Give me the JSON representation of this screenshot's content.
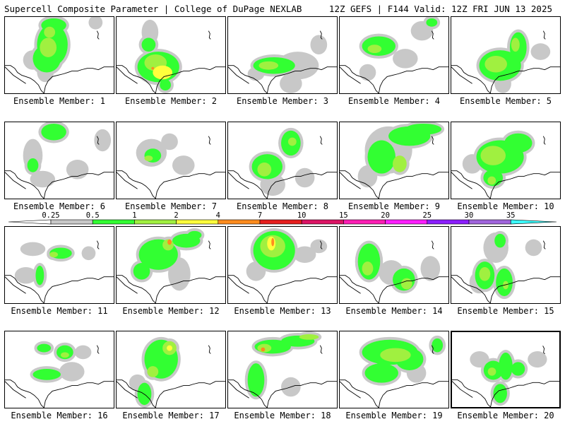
{
  "header": {
    "title": "Supercell Composite Parameter | College of DuPage NEXLAB",
    "model_info": "12Z GEFS | F144 Valid: 12Z FRI JUN 13 2025"
  },
  "panel_label_prefix": "Ensemble Member:",
  "members": [
    "1",
    "2",
    "3",
    "4",
    "5",
    "6",
    "7",
    "8",
    "9",
    "10",
    "11",
    "12",
    "13",
    "14",
    "15",
    "16",
    "17",
    "18",
    "19",
    "20"
  ],
  "colorbar": {
    "ticks": [
      "0.25",
      "0.5",
      "1",
      "2",
      "4",
      "7",
      "10",
      "15",
      "20",
      "25",
      "30",
      "35"
    ],
    "colors": [
      "#c8c8c8",
      "#32ff32",
      "#a0f040",
      "#ffff3c",
      "#ff8c1e",
      "#e61e1e",
      "#dc1464",
      "#ff1eb4",
      "#ff1eff",
      "#8c1eff",
      "#a064dc",
      "#3cffff"
    ]
  },
  "selected_member": "20"
}
